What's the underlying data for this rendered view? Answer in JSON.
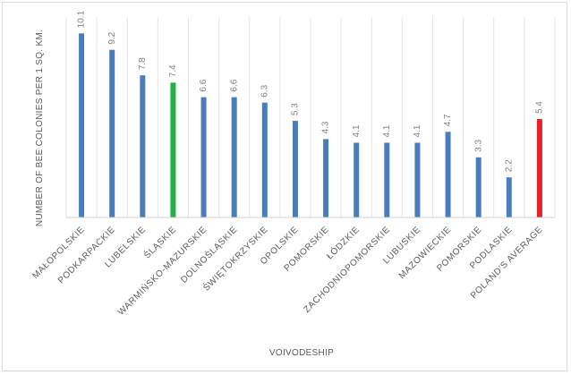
{
  "chart_data": {
    "type": "bar",
    "title": "",
    "xlabel": "VOIVODESHIP",
    "ylabel": "NUMBER OF BEE COLONIES PER 1 SQ. KM.",
    "ylim": [
      0,
      11
    ],
    "grid": "vertical category separators",
    "legend": "none",
    "categories": [
      "MAŁOPOLSKIE",
      "PODKARPACKIE",
      "LUBELSKIE",
      "ŚLĄSKIE",
      "WARMIŃSKO-MAZURSKIE",
      "DOLNOŚLĄSKIE",
      "ŚWIĘTOKRZYSKIE",
      "OPOLSKIE",
      "POMORSKIE",
      "ŁÓDZKIE",
      "ZACHODNIOPOMORSKIE",
      "LUBUSKIE",
      "MAZOWIECKIE",
      "POMORSKIE",
      "PODLASKIE",
      "POLAND'S AVERAGE"
    ],
    "values": [
      10.1,
      9.2,
      7.8,
      7.4,
      6.6,
      6.6,
      6.3,
      5.3,
      4.3,
      4.1,
      4.1,
      4.1,
      4.7,
      3.3,
      2.2,
      5.4
    ],
    "value_labels": [
      "10.1",
      "9.2",
      "7.8",
      "7.4",
      "6.6",
      "6.6",
      "6.3",
      "5.3",
      "4.3",
      "4.1",
      "4.1",
      "4.1",
      "4.7",
      "3.3",
      "2.2",
      "5.4"
    ],
    "colors": {
      "default": "#4a7ebb",
      "highlight": "#22b04a",
      "average": "#e8202a"
    },
    "bar_color_keys": [
      "default",
      "default",
      "default",
      "highlight",
      "default",
      "default",
      "default",
      "default",
      "default",
      "default",
      "default",
      "default",
      "default",
      "default",
      "default",
      "average"
    ]
  }
}
